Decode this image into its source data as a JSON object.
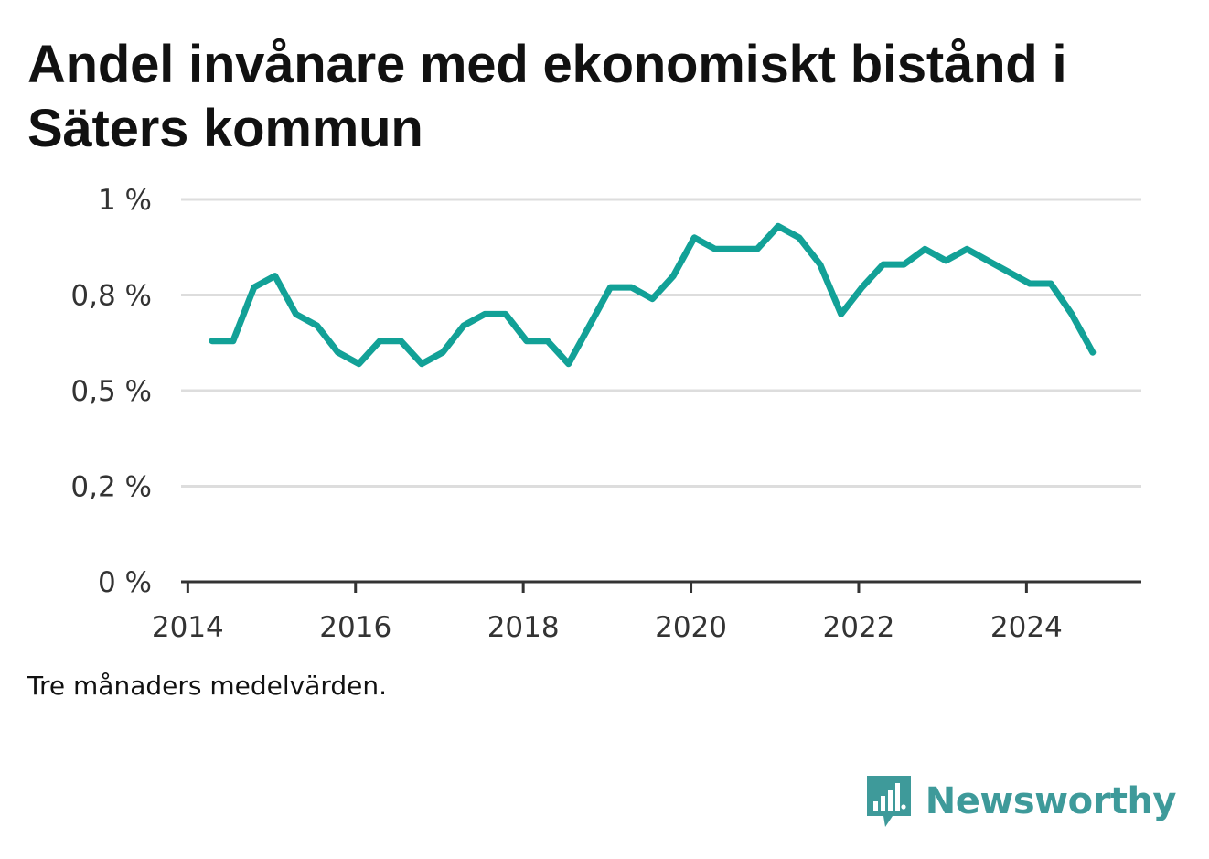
{
  "title": "Andel invånare med ekonomiskt bistånd i Säters kommun",
  "note": "Tre månaders medelvärden.",
  "brand": {
    "name": "Newsworthy",
    "icon": "newsworthy-logo-icon",
    "color": "#3e9a9a"
  },
  "chart_data": {
    "type": "line",
    "title": "Andel invånare med ekonomiskt bistånd i Säters kommun",
    "xlabel": "",
    "ylabel": "",
    "line_color": "#12a197",
    "grid": true,
    "xlim": [
      2013.92,
      2025.37
    ],
    "ylim": [
      0,
      1
    ],
    "y_ticks": [
      {
        "value": 0,
        "label": "0 %"
      },
      {
        "value": 0.25,
        "label": "0,2 %"
      },
      {
        "value": 0.5,
        "label": "0,5 %"
      },
      {
        "value": 0.75,
        "label": "0,8 %"
      },
      {
        "value": 1,
        "label": "1 %"
      }
    ],
    "x_ticks": [
      {
        "value": 2014,
        "label": "2014"
      },
      {
        "value": 2016,
        "label": "2016"
      },
      {
        "value": 2018,
        "label": "2018"
      },
      {
        "value": 2020,
        "label": "2020"
      },
      {
        "value": 2022,
        "label": "2022"
      },
      {
        "value": 2024,
        "label": "2024"
      }
    ],
    "series": [
      {
        "x": [
          2014.29,
          2014.54,
          2014.79,
          2015.04,
          2015.29,
          2015.54,
          2015.79,
          2016.04,
          2016.29,
          2016.54,
          2016.79,
          2017.04,
          2017.29,
          2017.54,
          2017.79,
          2018.04,
          2018.29,
          2018.54,
          2018.79,
          2019.04,
          2019.29,
          2019.54,
          2019.79,
          2020.04,
          2020.29,
          2020.54,
          2020.79,
          2021.04,
          2021.29,
          2021.54,
          2021.79,
          2022.04,
          2022.29,
          2022.54,
          2022.79,
          2023.04,
          2023.29,
          2023.54,
          2023.79,
          2024.04,
          2024.29,
          2024.54,
          2024.79
        ],
        "values": [
          0.63,
          0.63,
          0.77,
          0.8,
          0.7,
          0.67,
          0.6,
          0.57,
          0.63,
          0.63,
          0.57,
          0.6,
          0.67,
          0.7,
          0.7,
          0.63,
          0.63,
          0.57,
          0.67,
          0.77,
          0.77,
          0.74,
          0.8,
          0.9,
          0.87,
          0.87,
          0.87,
          0.93,
          0.9,
          0.83,
          0.7,
          0.77,
          0.83,
          0.83,
          0.87,
          0.84,
          0.87,
          0.84,
          0.81,
          0.78,
          0.78,
          0.7,
          0.6
        ]
      }
    ]
  }
}
